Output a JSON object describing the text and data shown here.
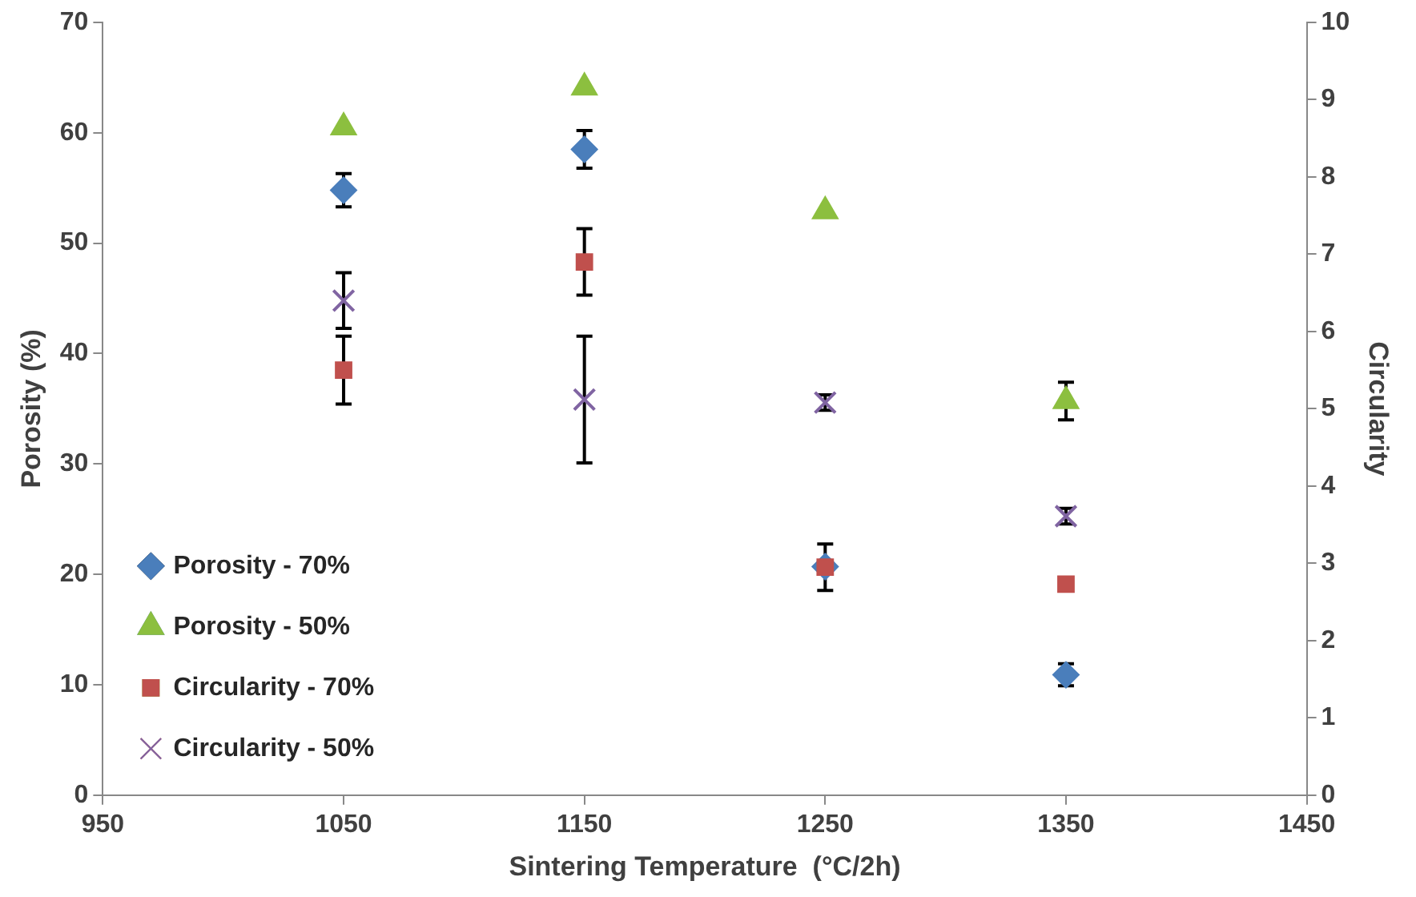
{
  "chart_data": {
    "type": "scatter",
    "xlabel": "Sintering Temperature  (°C/2h)",
    "ylabel": "Porosity (%)",
    "y2label": "Circularity",
    "x": [
      1050,
      1150,
      1250,
      1350
    ],
    "xlim": [
      950,
      1450
    ],
    "xticks": [
      950,
      1050,
      1150,
      1250,
      1350,
      1450
    ],
    "ylim": [
      0,
      70
    ],
    "yticks": [
      0,
      10,
      20,
      30,
      40,
      50,
      60,
      70
    ],
    "y2lim": [
      0,
      10
    ],
    "y2ticks": [
      0,
      1,
      2,
      3,
      4,
      5,
      6,
      7,
      8,
      9,
      10
    ],
    "grid": false,
    "legend": "bottom left",
    "series": [
      {
        "name": "Porosity - 70%",
        "color": "#4a7ebb",
        "marker": "diamond",
        "values": [
          54.8,
          58.5,
          20.7,
          10.9
        ],
        "errors": [
          1.5,
          1.7,
          null,
          1
        ]
      },
      {
        "name": "Porosity - 50%",
        "color": "#8cbf3f",
        "marker": "triangle",
        "values": [
          60.5,
          64.1,
          52.9,
          35.7
        ],
        "errors": [
          null,
          null,
          null,
          1.7
        ]
      },
      {
        "name": "Circularity - 70%",
        "color": "#c0504d",
        "marker": "square",
        "axis": "y2",
        "values": [
          5.5,
          6.9,
          2.95,
          2.73
        ],
        "errors": [
          0.44,
          0.43,
          0.3,
          null
        ]
      },
      {
        "name": "Circularity - 50%",
        "color": "#8064a2",
        "marker": "cross",
        "axis": "y2",
        "values": [
          6.4,
          5.12,
          5.08,
          3.61
        ],
        "errors": [
          0.36,
          0.82,
          0.1,
          0.1
        ]
      }
    ]
  }
}
